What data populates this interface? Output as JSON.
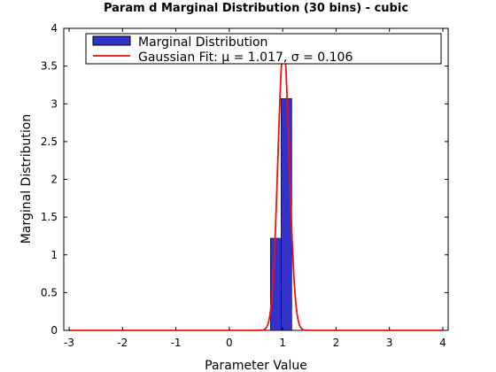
{
  "chart_data": {
    "type": "bar",
    "title": "Param d Marginal Distribution (30 bins) - cubic",
    "xlabel": "Parameter Value",
    "ylabel": "Marginal Distribution",
    "xlim": [
      -3.1,
      4.1
    ],
    "ylim": [
      0,
      4
    ],
    "xticks": [
      -3,
      -2,
      -1,
      0,
      1,
      2,
      3,
      4
    ],
    "xtick_labels": [
      "-3",
      "-2",
      "-1",
      "0",
      "1",
      "2",
      "3",
      "4"
    ],
    "yticks": [
      0,
      0.5,
      1,
      1.5,
      2,
      2.5,
      3,
      3.5,
      4
    ],
    "ytick_labels": [
      "0",
      "0.5",
      "1",
      "1.5",
      "2",
      "2.5",
      "3",
      "3.5",
      "4"
    ],
    "grid": false,
    "legend_position": "top",
    "histogram": {
      "name": "Marginal Distribution",
      "color": "#3333cc",
      "bin_width": 0.2,
      "bins": [
        {
          "x_start": 0.77,
          "x_end": 0.97,
          "value": 1.22
        },
        {
          "x_start": 0.97,
          "x_end": 1.17,
          "value": 3.07
        }
      ]
    },
    "fit": {
      "name": "Gaussian Fit: μ = 1.017, σ  = 0.106",
      "color": "#ee1111",
      "mu": 1.017,
      "sigma": 0.106,
      "x_range": [
        -3,
        4
      ]
    }
  }
}
